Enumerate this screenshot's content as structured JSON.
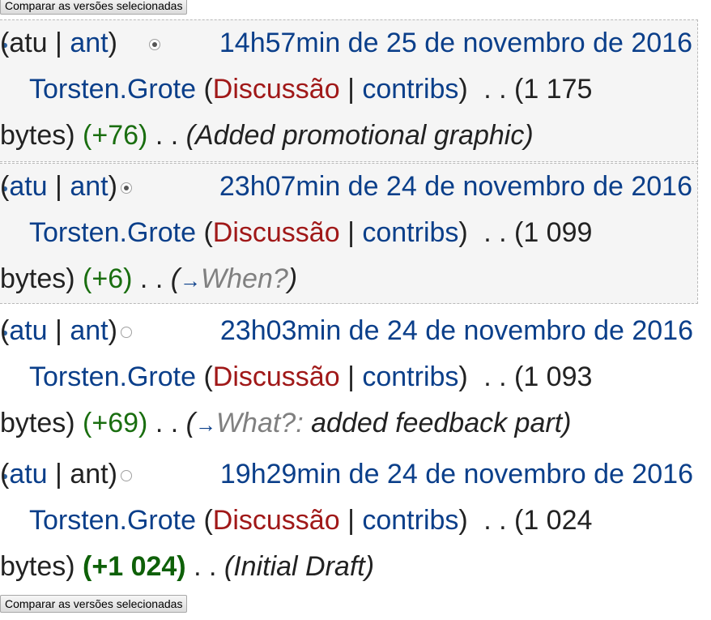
{
  "compare_button_label": "Comparar as versões selecionadas",
  "common": {
    "atu": "atu",
    "ant": "ant",
    "discussion": "Discussão",
    "contribs": "contribs",
    "bytes_word": "bytes)",
    "dots": ". .",
    "open_paren": "(",
    "close_paren": ")",
    "pipe": "|"
  },
  "revisions": [
    {
      "date": "14h57min de 25 de novembro de 2016",
      "user": "Torsten.Grote",
      "size": "(1 175",
      "diff": "(+76)",
      "summary": "(Added promotional graphic)",
      "radio_checked": true,
      "selected": true
    },
    {
      "date": "23h07min de 24 de novembro de 2016",
      "user": "Torsten.Grote",
      "size": "(1 099",
      "diff": "(+6)",
      "section": "When?",
      "summary_open": "(",
      "summary_close": ")",
      "arrow": "→",
      "radio_checked": true,
      "selected": true
    },
    {
      "date": "23h03min de 24 de novembro de 2016",
      "user": "Torsten.Grote",
      "size": "(1 093",
      "diff": "(+69)",
      "section": "What?:",
      "summary_rest": " added feedback part)",
      "summary_open": "(",
      "arrow": "→",
      "radio_checked": false,
      "selected": false
    },
    {
      "date": "19h29min de 24 de novembro de 2016",
      "user": "Torsten.Grote",
      "size": "(1 024",
      "diff": "(+1 024)",
      "summary": "(Initial Draft)",
      "radio_checked": false,
      "selected": false
    }
  ]
}
